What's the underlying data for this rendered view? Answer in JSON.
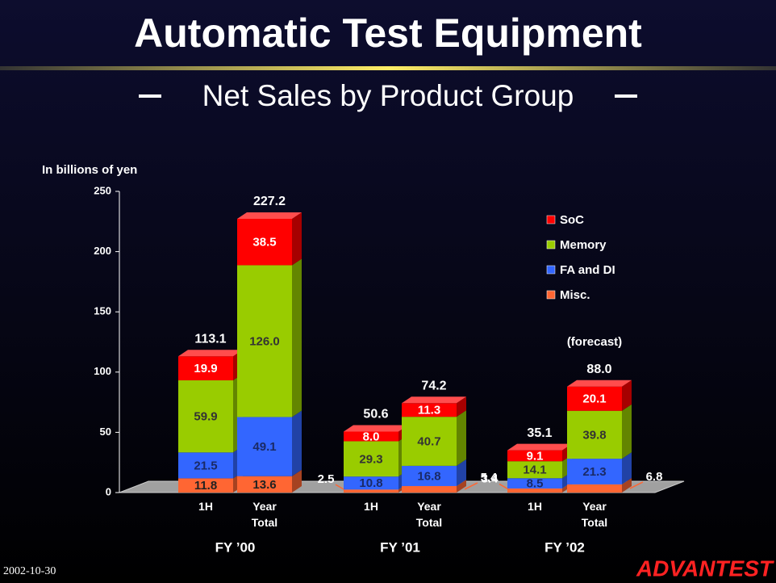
{
  "chart_data": {
    "type": "bar3d_stacked",
    "title": "Automatic Test Equipment",
    "subtitle": "Net Sales by Product Group",
    "y_label": "In billions of yen",
    "annotation": "(forecast)",
    "categories": [
      "1H",
      "Year Total",
      "1H",
      "Year Total",
      "1H",
      "Year Total"
    ],
    "groups": [
      "FY ’00",
      "FY ’01",
      "FY ’02"
    ],
    "series": [
      {
        "name": "Misc.",
        "color": "#ff6633",
        "values": [
          11.8,
          13.6,
          2.5,
          5.4,
          3.4,
          6.8
        ],
        "value_labels": [
          "11.8",
          "13.6",
          "2.5",
          "5.4",
          "3.4",
          "6.8"
        ]
      },
      {
        "name": "FA and DI",
        "color": "#3366ff",
        "values": [
          21.5,
          49.1,
          10.8,
          16.8,
          8.5,
          21.3
        ],
        "value_labels": [
          "21.5",
          "49.1",
          "10.8",
          "16.8",
          "8.5",
          "21.3"
        ]
      },
      {
        "name": "Memory",
        "color": "#99cc00",
        "values": [
          59.9,
          126.0,
          29.3,
          40.7,
          14.1,
          39.8
        ],
        "value_labels": [
          "59.9",
          "126.0",
          "29.3",
          "40.7",
          "14.1",
          "39.8"
        ]
      },
      {
        "name": "SoC",
        "color": "#ff0000",
        "values": [
          19.9,
          38.5,
          8.0,
          11.3,
          9.1,
          20.1
        ],
        "value_labels": [
          "19.9",
          "38.5",
          "8.0",
          "11.3",
          "9.1",
          "20.1"
        ]
      }
    ],
    "totals": [
      113.1,
      227.2,
      50.6,
      74.2,
      35.1,
      88.0
    ],
    "total_labels": [
      "113.1",
      "227.2",
      "50.6",
      "74.2",
      "35.1",
      "88.0"
    ],
    "ylim": [
      0,
      250
    ],
    "yticks": [
      0,
      50,
      100,
      150,
      200,
      250
    ],
    "legend": "upper right"
  },
  "footer": {
    "date": "2002-10-30",
    "logo": "ADVANTEST"
  }
}
